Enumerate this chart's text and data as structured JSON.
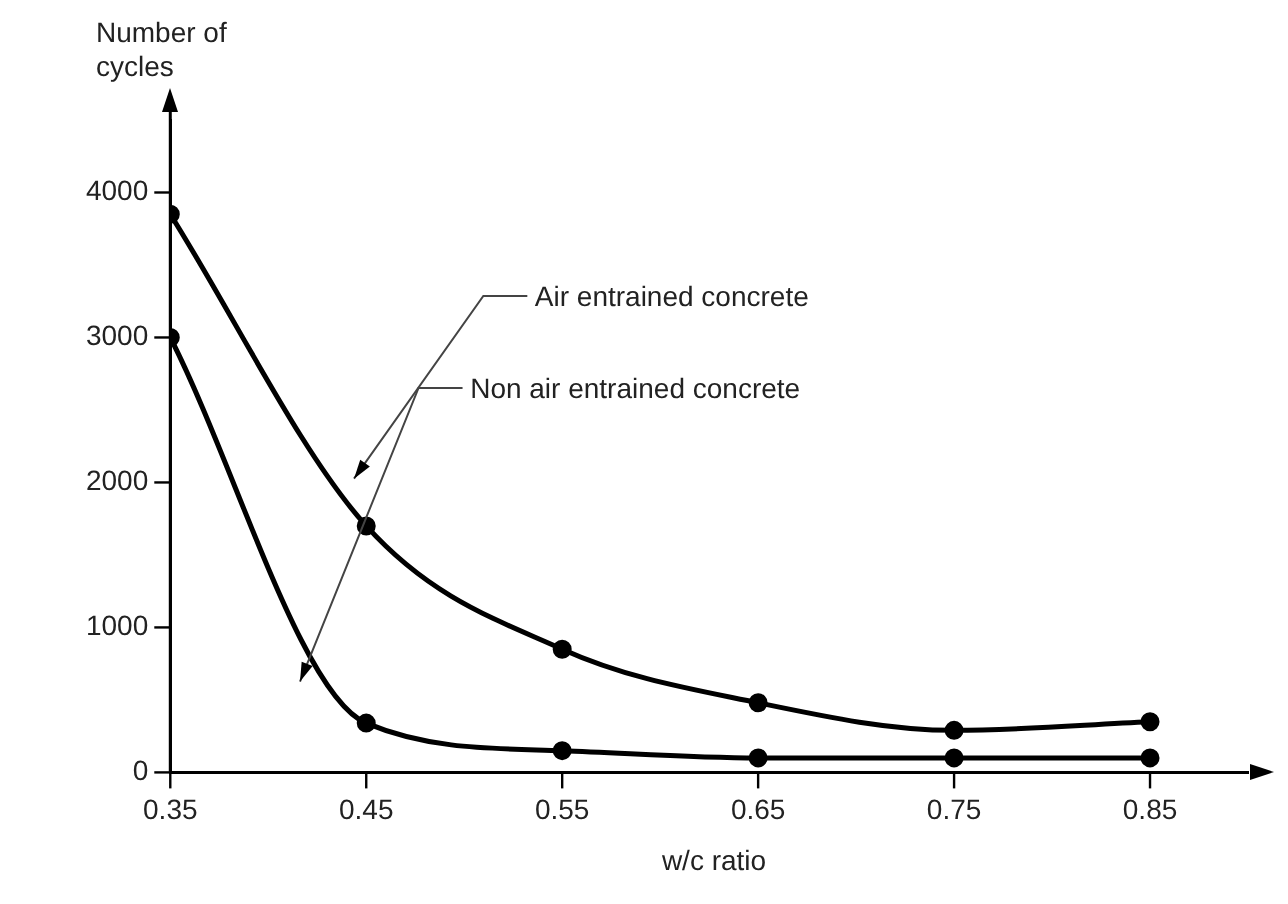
{
  "chart_data": {
    "type": "line",
    "xlabel": "w/c ratio",
    "ylabel": "Number of cycles",
    "x": [
      0.35,
      0.45,
      0.55,
      0.65,
      0.75,
      0.85
    ],
    "series": [
      {
        "color": "#000000",
        "values": [
          3850,
          1700,
          850,
          480,
          290,
          350
        ]
      },
      {
        "color": "#000000",
        "values": [
          3000,
          340,
          150,
          100,
          100,
          100
        ]
      }
    ],
    "xlim": [
      0.35,
      0.9
    ],
    "ylim": [
      0,
      4500
    ],
    "xticks": [
      0.35,
      0.45,
      0.55,
      0.65,
      0.75,
      0.85
    ],
    "yticks": [
      0,
      1000,
      2000,
      3000,
      4000
    ],
    "annotations": [
      "Air entrained concrete",
      "Non air entrained concrete"
    ],
    "grid": false,
    "legend": false,
    "marker": "circle",
    "line_style": "solid"
  }
}
